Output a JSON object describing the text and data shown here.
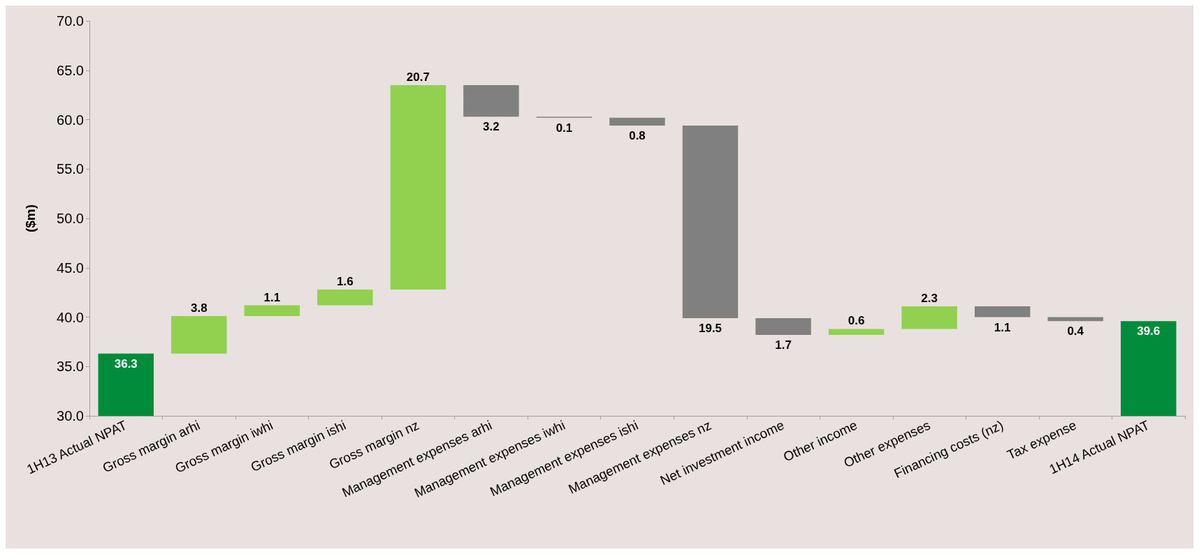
{
  "chart_data": {
    "type": "bar",
    "ylabel": "($m)",
    "categories": [
      "1H13 Actual NPAT",
      "Gross margin arhi",
      "Gross margin iwhi",
      "Gross margin ishi",
      "Gross margin nz",
      "Management expenses arhi",
      "Management expenses iwhi",
      "Management expenses ishi",
      "Management expenses nz",
      "Net investment income",
      "Other income",
      "Other expenses",
      "Financing costs (nz)",
      "Tax expense",
      "1H14 Actual NPAT"
    ],
    "values": [
      36.3,
      3.8,
      1.1,
      1.6,
      20.7,
      -3.2,
      -0.1,
      -0.8,
      -19.5,
      -1.7,
      0.6,
      2.3,
      -1.1,
      -0.4,
      39.6
    ],
    "base": [
      null,
      36.3,
      40.1,
      41.2,
      42.8,
      63.5,
      60.3,
      60.2,
      59.4,
      39.9,
      38.2,
      38.8,
      41.1,
      40.0,
      null
    ],
    "value_labels": [
      "36.3",
      "3.8",
      "1.1",
      "1.6",
      "20.7",
      "3.2",
      "0.1",
      "0.8",
      "19.5",
      "1.7",
      "0.6",
      "2.3",
      "1.1",
      "0.4",
      "39.6"
    ],
    "colors": [
      "#008c3a",
      "#92d050",
      "#92d050",
      "#92d050",
      "#92d050",
      "#808080",
      "#808080",
      "#808080",
      "#808080",
      "#808080",
      "#92d050",
      "#92d050",
      "#808080",
      "#808080",
      "#008c3a"
    ],
    "ylim": [
      30,
      70
    ],
    "yticks": [
      {
        "value": 30,
        "label": "30.0"
      },
      {
        "value": 35,
        "label": "35.0"
      },
      {
        "value": 40,
        "label": "40.0"
      },
      {
        "value": 45,
        "label": "45.0"
      },
      {
        "value": 50,
        "label": "50.0"
      },
      {
        "value": 55,
        "label": "55.0"
      },
      {
        "value": 60,
        "label": "60.0"
      },
      {
        "value": 65,
        "label": "65.0"
      },
      {
        "value": 70,
        "label": "70.0"
      }
    ],
    "grid": false
  }
}
